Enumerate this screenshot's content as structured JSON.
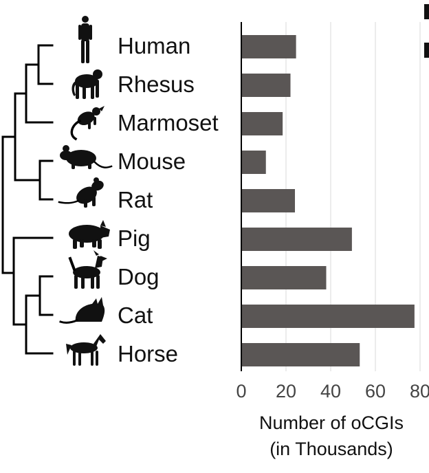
{
  "chart_data": {
    "type": "bar",
    "orientation": "horizontal",
    "categories": [
      "Human",
      "Rhesus",
      "Marmoset",
      "Mouse",
      "Rat",
      "Pig",
      "Dog",
      "Cat",
      "Horse"
    ],
    "values": [
      24.5,
      22,
      18.5,
      11,
      24,
      49.5,
      38,
      77.5,
      53
    ],
    "xlabel": [
      "Number of oCGIs",
      "(in Thousands)"
    ],
    "xlim": [
      0,
      80
    ],
    "xticks": [
      0,
      20,
      40,
      60,
      80
    ],
    "bar_color": "#5a5655",
    "grid": "vertical",
    "grid_color": "#e6e6e6",
    "legend": [
      {
        "color": "#111111"
      },
      {
        "color": "#111111"
      }
    ],
    "legend_position": "top-right, cropped",
    "icons": [
      "human-silhouette-icon",
      "rhesus-silhouette-icon",
      "marmoset-silhouette-icon",
      "mouse-silhouette-icon",
      "rat-silhouette-icon",
      "pig-silhouette-icon",
      "dog-silhouette-icon",
      "cat-silhouette-icon",
      "horse-silhouette-icon"
    ],
    "tree": "(((((Human,Rhesus),Marmoset),(Mouse,Rat)),(Pig,((Dog,Cat),Horse))))"
  }
}
